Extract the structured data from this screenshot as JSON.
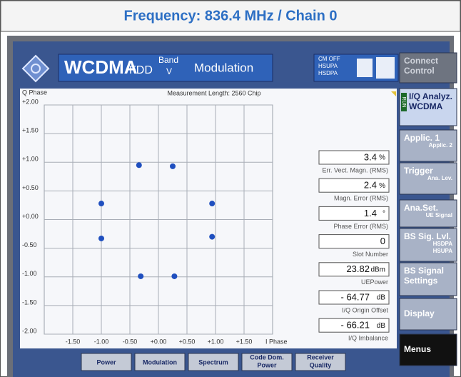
{
  "header": {
    "title": "Frequency: 836.4 MHz / Chain 0"
  },
  "top_bar": {
    "standard": "WCDMA",
    "mode": "FDD",
    "band_label": "Band",
    "band": "V",
    "function": "Modulation",
    "status": [
      "CM OFF",
      "HSUPA",
      "HSDPA"
    ]
  },
  "chart_data": {
    "type": "scatter",
    "title": "Measurement Length: 2560 Chip",
    "y_label": "Q Phase",
    "x_label": "I Phase",
    "x": [
      -0.34,
      0.25,
      -1.0,
      0.94,
      -1.0,
      0.94,
      -0.31,
      0.28
    ],
    "values": [
      0.95,
      0.93,
      0.28,
      0.28,
      -0.33,
      -0.3,
      -0.99,
      -0.99
    ],
    "color": "#1f4fbf",
    "xlim": [
      -2,
      2
    ],
    "ylim": [
      -2,
      2
    ],
    "xticks": [
      {
        "value": -1.5,
        "label": "-1.50"
      },
      {
        "value": -1,
        "label": "-1.00"
      },
      {
        "value": -0.5,
        "label": "-0.50"
      },
      {
        "value": 0,
        "label": "+0.00"
      },
      {
        "value": 0.5,
        "label": "+0.50"
      },
      {
        "value": 1,
        "label": "+1.00"
      },
      {
        "value": 1.5,
        "label": "+1.50"
      }
    ],
    "yticks": [
      {
        "value": 2,
        "label": "+2.00"
      },
      {
        "value": 1.5,
        "label": "+1.50"
      },
      {
        "value": 1,
        "label": "+1.00"
      },
      {
        "value": 0.5,
        "label": "+0.50"
      },
      {
        "value": 0,
        "label": "+0.00"
      },
      {
        "value": -0.5,
        "label": "-0.50"
      },
      {
        "value": -1,
        "label": "-1.00"
      },
      {
        "value": -1.5,
        "label": "-1.50"
      },
      {
        "value": -2,
        "label": "-2.00"
      }
    ],
    "grid": true
  },
  "readouts": [
    {
      "value": "3.4",
      "unit": "%",
      "label": "Err. Vect. Magn. (RMS)"
    },
    {
      "value": "2.4",
      "unit": "%",
      "label": "Magn. Error (RMS)"
    },
    {
      "value": "1.4",
      "unit": "°",
      "label": "Phase Error (RMS)"
    },
    {
      "value": "0",
      "unit": null,
      "label": "Slot Number"
    },
    {
      "value": "23.82",
      "unit": "dBm",
      "label": "UEPower"
    },
    {
      "value": "- 64.77",
      "unit": "dB",
      "label": "I/Q Origin Offset"
    },
    {
      "value": "- 66.21",
      "unit": "dB",
      "label": "I/Q Imbalance"
    }
  ],
  "side_menu": [
    {
      "lines": [
        "Connect",
        "Control"
      ]
    },
    {
      "flag": "RUN",
      "lines": [
        "I/Q Analyz.",
        "WCDMA"
      ]
    },
    {
      "lines": [
        "Applic. 1",
        "Applic. 2"
      ]
    },
    {
      "lines": [
        "Trigger",
        "Ana. Lev."
      ]
    },
    {
      "lines": [
        "Ana.Set.",
        "UE Signal"
      ]
    },
    {
      "lines": [
        "BS Sig. Lvl.",
        "HSDPA",
        "HSUPA"
      ]
    },
    {
      "lines": [
        "BS Signal",
        "Settings"
      ]
    },
    {
      "lines": [
        "Display"
      ]
    },
    {
      "lines": [
        "Menus"
      ]
    }
  ],
  "softkeys": [
    {
      "lines": [
        "Power"
      ]
    },
    {
      "lines": [
        "Modulation"
      ]
    },
    {
      "lines": [
        "Spectrum"
      ]
    },
    {
      "lines": [
        "Code Dom.",
        "Power"
      ]
    },
    {
      "lines": [
        "Receiver",
        "Quality"
      ]
    }
  ]
}
